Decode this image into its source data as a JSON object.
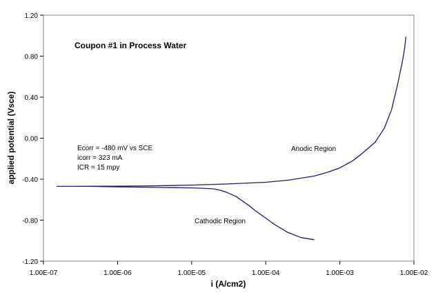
{
  "chart_data": {
    "type": "line",
    "title": "Coupon #1 in Process Water",
    "xlabel": "i (A/cm2)",
    "ylabel": "applied potential (Vsce)",
    "x_scale": "log",
    "xlim": [
      1e-07,
      0.01
    ],
    "ylim": [
      -1.2,
      1.2
    ],
    "x_tick_labels": [
      "1.00E-07",
      "1.00E-06",
      "1.00E-05",
      "1.00E-04",
      "1.00E-03",
      "1.00E-02"
    ],
    "y_tick_labels": [
      "1.20",
      "0.80",
      "0.40",
      "0.00",
      "-0.40",
      "-0.80",
      "-1.20"
    ],
    "grid": false,
    "legend": "none",
    "color": "#1a1a6e",
    "series": [
      {
        "x": [
          1.5e-07,
          3e-07,
          1e-06,
          3e-06,
          1e-05,
          3e-05,
          0.0001,
          0.0002,
          0.0003,
          0.00045,
          0.0005,
          0.0007,
          0.001,
          0.0015,
          0.002,
          0.003,
          0.004,
          0.005,
          0.006,
          0.007,
          0.0075,
          0.0078
        ],
        "y": [
          -0.47,
          -0.47,
          -0.468,
          -0.465,
          -0.458,
          -0.447,
          -0.43,
          -0.41,
          -0.39,
          -0.37,
          -0.36,
          -0.33,
          -0.29,
          -0.22,
          -0.15,
          -0.04,
          0.1,
          0.28,
          0.52,
          0.75,
          0.88,
          0.99
        ]
      },
      {
        "x": [
          4e-07,
          1e-06,
          3e-06,
          1e-05,
          1.5e-05,
          2e-05,
          2.5e-05,
          3e-05,
          4e-05,
          5e-05,
          6e-05,
          7e-05,
          8e-05,
          0.0001,
          0.00013,
          0.0002,
          0.0003,
          0.00045
        ],
        "y": [
          -0.47,
          -0.475,
          -0.48,
          -0.485,
          -0.49,
          -0.495,
          -0.51,
          -0.53,
          -0.57,
          -0.62,
          -0.66,
          -0.7,
          -0.73,
          -0.78,
          -0.84,
          -0.92,
          -0.97,
          -0.99
        ]
      }
    ],
    "annotations": [
      {
        "text": "Ecorr = -480 mV vs SCE"
      },
      {
        "text": "icorr = 323 mA"
      },
      {
        "text": "ICR = 15 mpy"
      },
      {
        "text": "Anodic Region"
      },
      {
        "text": "Cathodic Region"
      }
    ]
  }
}
